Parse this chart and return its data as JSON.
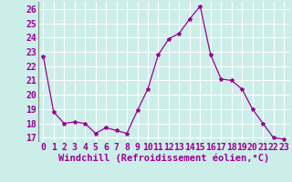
{
  "x": [
    0,
    1,
    2,
    3,
    4,
    5,
    6,
    7,
    8,
    9,
    10,
    11,
    12,
    13,
    14,
    15,
    16,
    17,
    18,
    19,
    20,
    21,
    22,
    23
  ],
  "y": [
    22.7,
    18.8,
    18.0,
    18.1,
    18.0,
    17.3,
    17.7,
    17.5,
    17.3,
    18.9,
    20.4,
    22.8,
    23.9,
    24.3,
    25.3,
    26.2,
    22.8,
    21.1,
    21.0,
    20.4,
    19.0,
    18.0,
    17.0,
    16.9
  ],
  "line_color": "#990099",
  "marker": "*",
  "marker_size": 3,
  "bg_color": "#cceee8",
  "grid_color": "#ffffff",
  "xlabel": "Windchill (Refroidissement éolien,°C)",
  "xlabel_fontsize": 7.5,
  "tick_fontsize": 7,
  "ylim": [
    16.7,
    26.5
  ],
  "yticks": [
    17,
    18,
    19,
    20,
    21,
    22,
    23,
    24,
    25,
    26
  ],
  "xticks": [
    0,
    1,
    2,
    3,
    4,
    5,
    6,
    7,
    8,
    9,
    10,
    11,
    12,
    13,
    14,
    15,
    16,
    17,
    18,
    19,
    20,
    21,
    22,
    23
  ],
  "xlim": [
    -0.5,
    23.5
  ]
}
